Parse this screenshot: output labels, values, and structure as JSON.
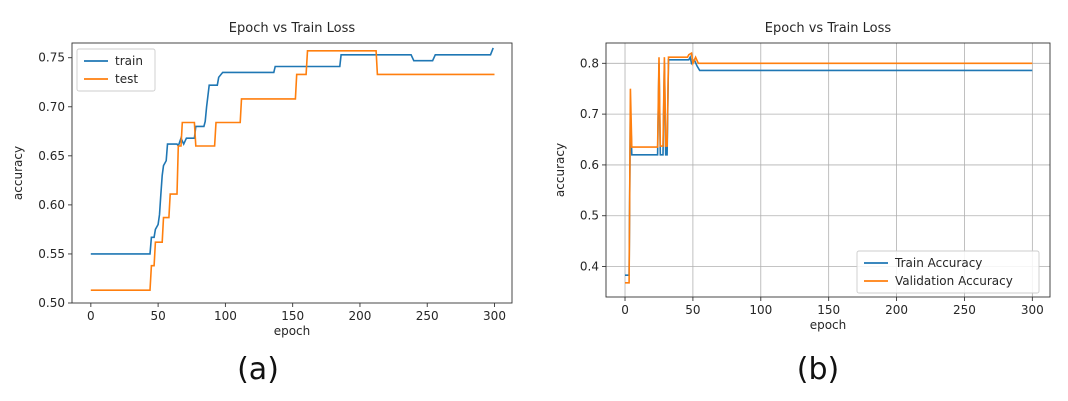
{
  "captions": [
    "(a)",
    "(b)"
  ],
  "chart_data": [
    {
      "type": "line",
      "title": "Epoch vs Train Loss",
      "xlabel": "epoch",
      "ylabel": "accuracy",
      "xlim": [
        -14,
        313
      ],
      "ylim": [
        0.5,
        0.765
      ],
      "xticks": [
        0,
        50,
        100,
        150,
        200,
        250,
        300
      ],
      "yticks": [
        0.5,
        0.55,
        0.6,
        0.65,
        0.7,
        0.75
      ],
      "ytick_labels": [
        "0.50",
        "0.55",
        "0.60",
        "0.65",
        "0.70",
        "0.75"
      ],
      "grid": false,
      "legend": "top-left",
      "series": [
        {
          "name": "train",
          "color": "#1f77b4",
          "points": [
            [
              0,
              0.55
            ],
            [
              44,
              0.55
            ],
            [
              45,
              0.567
            ],
            [
              47,
              0.567
            ],
            [
              48,
              0.575
            ],
            [
              50,
              0.58
            ],
            [
              51,
              0.59
            ],
            [
              52,
              0.61
            ],
            [
              53,
              0.63
            ],
            [
              54,
              0.64
            ],
            [
              56,
              0.645
            ],
            [
              57,
              0.662
            ],
            [
              64,
              0.662
            ],
            [
              65,
              0.66
            ],
            [
              67,
              0.668
            ],
            [
              69,
              0.662
            ],
            [
              71,
              0.668
            ],
            [
              77,
              0.668
            ],
            [
              78,
              0.68
            ],
            [
              84,
              0.68
            ],
            [
              85,
              0.685
            ],
            [
              86,
              0.7
            ],
            [
              88,
              0.722
            ],
            [
              94,
              0.722
            ],
            [
              95,
              0.73
            ],
            [
              98,
              0.735
            ],
            [
              136,
              0.735
            ],
            [
              137,
              0.741
            ],
            [
              185,
              0.741
            ],
            [
              186,
              0.753
            ],
            [
              238,
              0.753
            ],
            [
              240,
              0.747
            ],
            [
              254,
              0.747
            ],
            [
              256,
              0.753
            ],
            [
              297,
              0.753
            ],
            [
              299,
              0.76
            ]
          ]
        },
        {
          "name": "test",
          "color": "#ff7f0e",
          "points": [
            [
              0,
              0.513
            ],
            [
              44,
              0.513
            ],
            [
              45,
              0.538
            ],
            [
              47,
              0.538
            ],
            [
              48,
              0.562
            ],
            [
              53,
              0.562
            ],
            [
              54,
              0.587
            ],
            [
              58,
              0.587
            ],
            [
              59,
              0.611
            ],
            [
              64,
              0.611
            ],
            [
              65,
              0.66
            ],
            [
              67,
              0.66
            ],
            [
              68,
              0.684
            ],
            [
              77,
              0.684
            ],
            [
              78,
              0.66
            ],
            [
              92,
              0.66
            ],
            [
              93,
              0.684
            ],
            [
              111,
              0.684
            ],
            [
              112,
              0.708
            ],
            [
              152,
              0.708
            ],
            [
              153,
              0.733
            ],
            [
              160,
              0.733
            ],
            [
              161,
              0.757
            ],
            [
              212,
              0.757
            ],
            [
              213,
              0.733
            ],
            [
              300,
              0.733
            ]
          ]
        }
      ]
    },
    {
      "type": "line",
      "title": "Epoch vs Train Loss",
      "xlabel": "epoch",
      "ylabel": "accuracy",
      "xlim": [
        -14,
        313
      ],
      "ylim": [
        0.34,
        0.84
      ],
      "xticks": [
        0,
        50,
        100,
        150,
        200,
        250,
        300
      ],
      "yticks": [
        0.4,
        0.5,
        0.6,
        0.7,
        0.8
      ],
      "ytick_labels": [
        "0.4",
        "0.5",
        "0.6",
        "0.7",
        "0.8"
      ],
      "grid": true,
      "legend": "bottom-right",
      "series": [
        {
          "name": "Train Accuracy",
          "color": "#1f77b4",
          "points": [
            [
              0,
              0.383
            ],
            [
              3,
              0.383
            ],
            [
              4,
              0.715
            ],
            [
              5,
              0.62
            ],
            [
              24,
              0.62
            ],
            [
              25,
              0.8
            ],
            [
              26,
              0.62
            ],
            [
              28,
              0.62
            ],
            [
              29,
              0.8
            ],
            [
              30,
              0.62
            ],
            [
              31,
              0.62
            ],
            [
              32,
              0.807
            ],
            [
              47,
              0.807
            ],
            [
              48,
              0.812
            ],
            [
              49,
              0.8
            ],
            [
              51,
              0.807
            ],
            [
              53,
              0.795
            ],
            [
              55,
              0.786
            ],
            [
              300,
              0.786
            ]
          ]
        },
        {
          "name": "Validation Accuracy",
          "color": "#ff7f0e",
          "points": [
            [
              0,
              0.368
            ],
            [
              3,
              0.368
            ],
            [
              4,
              0.75
            ],
            [
              5,
              0.635
            ],
            [
              24,
              0.635
            ],
            [
              25,
              0.812
            ],
            [
              26,
              0.637
            ],
            [
              28,
              0.637
            ],
            [
              29,
              0.812
            ],
            [
              30,
              0.637
            ],
            [
              31,
              0.637
            ],
            [
              32,
              0.812
            ],
            [
              46,
              0.812
            ],
            [
              47,
              0.817
            ],
            [
              49,
              0.82
            ],
            [
              50,
              0.8
            ],
            [
              52,
              0.812
            ],
            [
              54,
              0.8
            ],
            [
              300,
              0.8
            ]
          ]
        }
      ]
    }
  ]
}
